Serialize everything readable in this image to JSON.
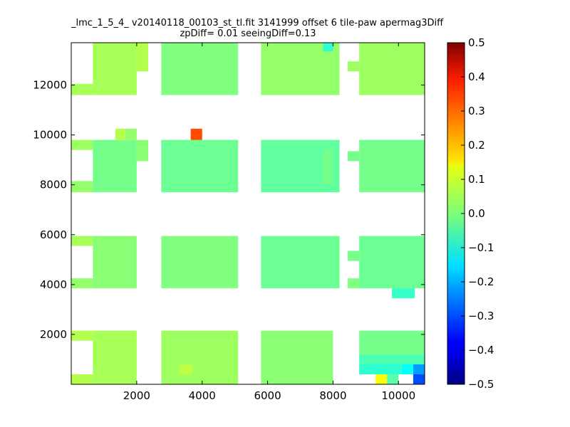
{
  "chart_data": {
    "type": "heatmap",
    "title_line1": "_lmc_1_5_4_ v20140118_00103_st_tl.fit 3141999 offset 6 tile-paw apermag3Diff",
    "title_line2": "zpDiff= 0.01 seeingDiff=0.13",
    "xlabel": "",
    "ylabel": "",
    "xlim": [
      0,
      10800
    ],
    "ylim": [
      0,
      13700
    ],
    "xticks": [
      2000,
      4000,
      6000,
      8000,
      10000
    ],
    "yticks": [
      2000,
      4000,
      6000,
      8000,
      10000,
      12000
    ],
    "colorbar": {
      "vmin": -0.5,
      "vmax": 0.5,
      "colormap": "jet",
      "ticks": [
        "0.5",
        "0.4",
        "0.3",
        "0.2",
        "0.1",
        "0.0",
        "−0.1",
        "−0.2",
        "−0.3",
        "−0.4",
        "−0.5"
      ]
    },
    "cells": [
      {
        "x0": 660,
        "x1": 2000,
        "y0": 11600,
        "y1": 13700,
        "v": 0.04
      },
      {
        "x0": 0,
        "x1": 660,
        "y0": 11600,
        "y1": 12050,
        "v": 0.04
      },
      {
        "x0": 2000,
        "x1": 2350,
        "y0": 12550,
        "y1": 13700,
        "v": 0.05
      },
      {
        "x0": 2750,
        "x1": 5100,
        "y0": 11600,
        "y1": 13700,
        "v": 0.0
      },
      {
        "x0": 5800,
        "x1": 8200,
        "y0": 11600,
        "y1": 13700,
        "v": 0.02
      },
      {
        "x0": 7700,
        "x1": 8000,
        "y0": 13350,
        "y1": 13700,
        "v": -0.08
      },
      {
        "x0": 8450,
        "x1": 8800,
        "y0": 12550,
        "y1": 12950,
        "v": 0.03
      },
      {
        "x0": 8800,
        "x1": 10800,
        "y0": 11600,
        "y1": 13700,
        "v": 0.03
      },
      {
        "x0": 660,
        "x1": 2000,
        "y0": 7700,
        "y1": 9800,
        "v": -0.01
      },
      {
        "x0": 0,
        "x1": 660,
        "y0": 9400,
        "y1": 9800,
        "v": 0.03
      },
      {
        "x0": 0,
        "x1": 660,
        "y0": 7700,
        "y1": 8150,
        "v": 0.02
      },
      {
        "x0": 2000,
        "x1": 2350,
        "y0": 8950,
        "y1": 9800,
        "v": 0.01
      },
      {
        "x0": 1350,
        "x1": 1650,
        "y0": 9800,
        "y1": 10250,
        "v": 0.05
      },
      {
        "x0": 1650,
        "x1": 2000,
        "y0": 9800,
        "y1": 10250,
        "v": 0.02
      },
      {
        "x0": 2750,
        "x1": 5100,
        "y0": 7700,
        "y1": 9800,
        "v": -0.02
      },
      {
        "x0": 3650,
        "x1": 4000,
        "y0": 9800,
        "y1": 10250,
        "v": 0.3
      },
      {
        "x0": 5800,
        "x1": 8200,
        "y0": 7700,
        "y1": 9800,
        "v": -0.03
      },
      {
        "x0": 7700,
        "x1": 8000,
        "y0": 8000,
        "y1": 9400,
        "v": -0.01
      },
      {
        "x0": 8450,
        "x1": 8800,
        "y0": 8950,
        "y1": 9350,
        "v": -0.01
      },
      {
        "x0": 8800,
        "x1": 10800,
        "y0": 7700,
        "y1": 9800,
        "v": -0.01
      },
      {
        "x0": 660,
        "x1": 2000,
        "y0": 3850,
        "y1": 5950,
        "v": 0.01
      },
      {
        "x0": 0,
        "x1": 660,
        "y0": 5550,
        "y1": 5950,
        "v": 0.04
      },
      {
        "x0": 0,
        "x1": 660,
        "y0": 3850,
        "y1": 4250,
        "v": 0.02
      },
      {
        "x0": 2750,
        "x1": 5100,
        "y0": 3850,
        "y1": 5950,
        "v": 0.0
      },
      {
        "x0": 5800,
        "x1": 8200,
        "y0": 3850,
        "y1": 5950,
        "v": -0.02
      },
      {
        "x0": 7700,
        "x1": 8000,
        "y0": 4150,
        "y1": 5550,
        "v": -0.02
      },
      {
        "x0": 8450,
        "x1": 8800,
        "y0": 4950,
        "y1": 5350,
        "v": -0.01
      },
      {
        "x0": 8450,
        "x1": 8800,
        "y0": 3850,
        "y1": 4250,
        "v": 0.0
      },
      {
        "x0": 8800,
        "x1": 10800,
        "y0": 3850,
        "y1": 5950,
        "v": -0.02
      },
      {
        "x0": 9800,
        "x1": 10500,
        "y0": 3450,
        "y1": 3850,
        "v": -0.07
      },
      {
        "x0": 660,
        "x1": 2000,
        "y0": 0,
        "y1": 2150,
        "v": 0.04
      },
      {
        "x0": 0,
        "x1": 660,
        "y0": 1750,
        "y1": 2150,
        "v": 0.05
      },
      {
        "x0": 0,
        "x1": 660,
        "y0": 0,
        "y1": 400,
        "v": 0.05
      },
      {
        "x0": 2750,
        "x1": 5100,
        "y0": 0,
        "y1": 2150,
        "v": 0.03
      },
      {
        "x0": 3300,
        "x1": 3700,
        "y0": 400,
        "y1": 800,
        "v": 0.06
      },
      {
        "x0": 5800,
        "x1": 8000,
        "y0": 0,
        "y1": 2150,
        "v": 0.01
      },
      {
        "x0": 8800,
        "x1": 10800,
        "y0": 1200,
        "y1": 2150,
        "v": -0.01
      },
      {
        "x0": 8800,
        "x1": 10800,
        "y0": 800,
        "y1": 1200,
        "v": -0.05
      },
      {
        "x0": 8800,
        "x1": 10100,
        "y0": 400,
        "y1": 800,
        "v": -0.08
      },
      {
        "x0": 10100,
        "x1": 10450,
        "y0": 400,
        "y1": 800,
        "v": -0.12
      },
      {
        "x0": 10450,
        "x1": 10800,
        "y0": 400,
        "y1": 800,
        "v": -0.22
      },
      {
        "x0": 9300,
        "x1": 9650,
        "y0": 0,
        "y1": 400,
        "v": 0.12
      },
      {
        "x0": 9650,
        "x1": 10000,
        "y0": 0,
        "y1": 400,
        "v": -0.04
      },
      {
        "x0": 10450,
        "x1": 10800,
        "y0": 0,
        "y1": 400,
        "v": -0.3
      }
    ]
  }
}
